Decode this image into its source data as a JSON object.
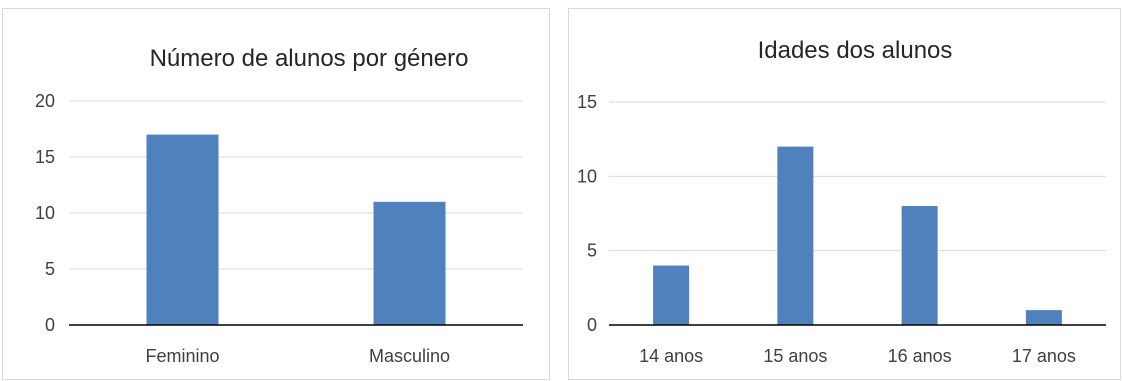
{
  "charts": [
    {
      "chart_data": {
        "type": "bar",
        "title": "Número de alunos por género",
        "categories": [
          "Feminino",
          "Masculino"
        ],
        "values": [
          17,
          11
        ],
        "ylim": [
          0,
          20
        ],
        "yticks": [
          "0",
          "5",
          "10",
          "15",
          "20"
        ],
        "grid": true,
        "legend": "none"
      },
      "color": "#4f81bd"
    },
    {
      "chart_data": {
        "type": "bar",
        "title": "Idades dos alunos",
        "categories": [
          "14 anos",
          "15 anos",
          "16 anos",
          "17 anos"
        ],
        "values": [
          4,
          12,
          8,
          1
        ],
        "ylim": [
          0,
          15
        ],
        "yticks": [
          "0",
          "5",
          "10",
          "15"
        ],
        "grid": true,
        "legend": "none"
      },
      "color": "#4f81bd"
    }
  ]
}
